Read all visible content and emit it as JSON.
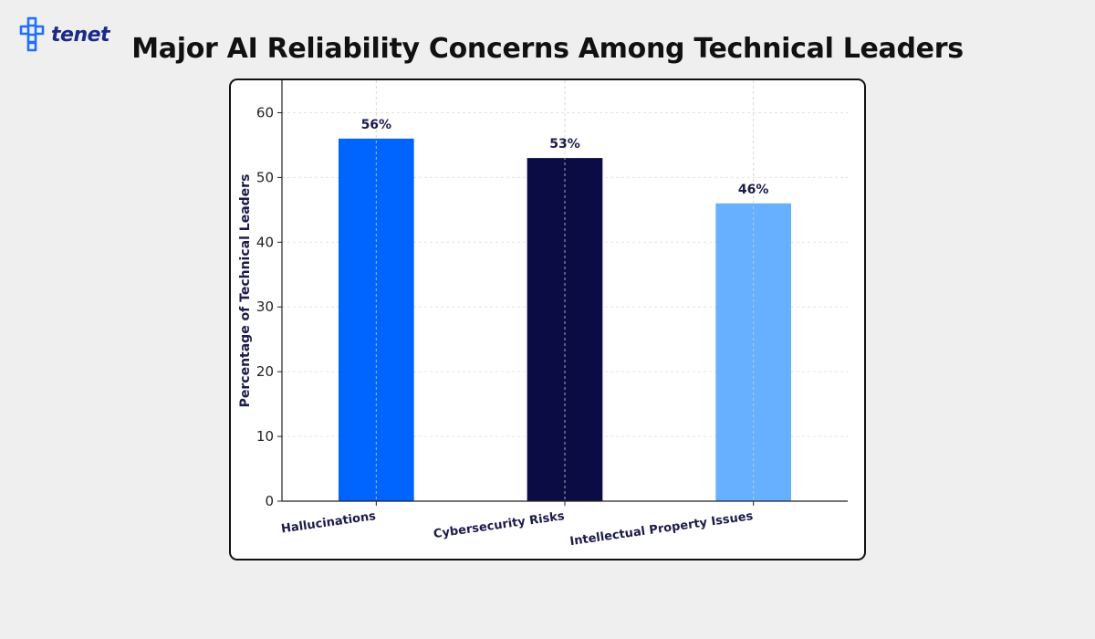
{
  "brand": {
    "name": "tenet",
    "logo_color": "#1f6fff",
    "text_color": "#1a2a8c"
  },
  "page": {
    "title": "Major AI Reliability Concerns Among Technical Leaders"
  },
  "chart_data": {
    "type": "bar",
    "title": "",
    "xlabel": "",
    "ylabel": "Percentage of Technical Leaders",
    "categories": [
      "Hallucinations",
      "Cybersecurity Risks",
      "Intellectual Property Issues"
    ],
    "values": [
      56,
      53,
      46
    ],
    "data_labels": [
      "56%",
      "53%",
      "46%"
    ],
    "colors": [
      "#0064ff",
      "#0b0c44",
      "#66b0ff"
    ],
    "ylim": [
      0,
      65
    ],
    "yticks": [
      0,
      10,
      20,
      30,
      40,
      50,
      60
    ],
    "grid": true
  }
}
